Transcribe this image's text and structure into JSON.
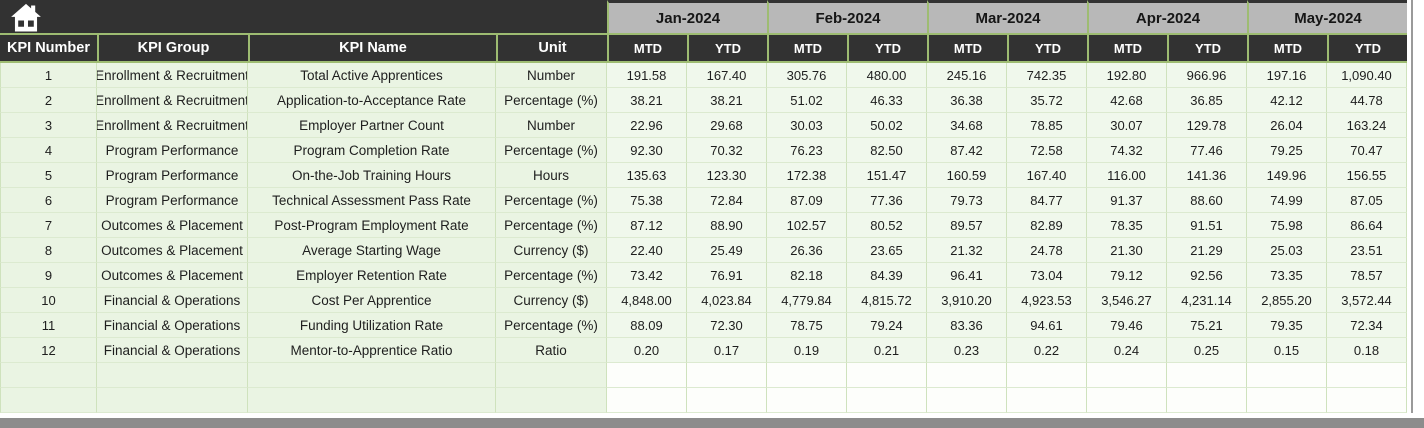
{
  "colors": {
    "header_dark": "#323232",
    "month_gray": "#b8b8b8",
    "border_green": "#9ebc72",
    "row_light_green": "#eaf4e3",
    "data_light_green": "#f0f8ec",
    "edge_gray": "#8c8c8c"
  },
  "table": {
    "corner_icon": "home-icon",
    "months": [
      "Jan-2024",
      "Feb-2024",
      "Mar-2024",
      "Apr-2024",
      "May-2024"
    ],
    "sub_headers": [
      "MTD",
      "YTD"
    ],
    "left_headers": [
      "KPI Number",
      "KPI Group",
      "KPI Name",
      "Unit"
    ],
    "rows": [
      {
        "number": "1",
        "group": "Enrollment & Recruitment",
        "name": "Total Active Apprentices",
        "unit": "Number",
        "values": [
          "191.58",
          "167.40",
          "305.76",
          "480.00",
          "245.16",
          "742.35",
          "192.80",
          "966.96",
          "197.16",
          "1,090.40"
        ]
      },
      {
        "number": "2",
        "group": "Enrollment & Recruitment",
        "name": "Application-to-Acceptance Rate",
        "unit": "Percentage (%)",
        "values": [
          "38.21",
          "38.21",
          "51.02",
          "46.33",
          "36.38",
          "35.72",
          "42.68",
          "36.85",
          "42.12",
          "44.78"
        ]
      },
      {
        "number": "3",
        "group": "Enrollment & Recruitment",
        "name": "Employer Partner Count",
        "unit": "Number",
        "values": [
          "22.96",
          "29.68",
          "30.03",
          "50.02",
          "34.68",
          "78.85",
          "30.07",
          "129.78",
          "26.04",
          "163.24"
        ]
      },
      {
        "number": "4",
        "group": "Program Performance",
        "name": "Program Completion Rate",
        "unit": "Percentage (%)",
        "values": [
          "92.30",
          "70.32",
          "76.23",
          "82.50",
          "87.42",
          "72.58",
          "74.32",
          "77.46",
          "79.25",
          "70.47"
        ]
      },
      {
        "number": "5",
        "group": "Program Performance",
        "name": "On-the-Job Training Hours",
        "unit": "Hours",
        "values": [
          "135.63",
          "123.30",
          "172.38",
          "151.47",
          "160.59",
          "167.40",
          "116.00",
          "141.36",
          "149.96",
          "156.55"
        ]
      },
      {
        "number": "6",
        "group": "Program Performance",
        "name": "Technical Assessment Pass Rate",
        "unit": "Percentage (%)",
        "values": [
          "75.38",
          "72.84",
          "87.09",
          "77.36",
          "79.73",
          "84.77",
          "91.37",
          "88.60",
          "74.99",
          "87.05"
        ]
      },
      {
        "number": "7",
        "group": "Outcomes & Placement",
        "name": "Post-Program Employment Rate",
        "unit": "Percentage (%)",
        "values": [
          "87.12",
          "88.90",
          "102.57",
          "80.52",
          "89.57",
          "82.89",
          "78.35",
          "91.51",
          "75.98",
          "86.64"
        ]
      },
      {
        "number": "8",
        "group": "Outcomes & Placement",
        "name": "Average Starting Wage",
        "unit": "Currency ($)",
        "values": [
          "22.40",
          "25.49",
          "26.36",
          "23.65",
          "21.32",
          "24.78",
          "21.30",
          "21.29",
          "25.03",
          "23.51"
        ]
      },
      {
        "number": "9",
        "group": "Outcomes & Placement",
        "name": "Employer Retention Rate",
        "unit": "Percentage (%)",
        "values": [
          "73.42",
          "76.91",
          "82.18",
          "84.39",
          "96.41",
          "73.04",
          "79.12",
          "92.56",
          "73.35",
          "78.57"
        ]
      },
      {
        "number": "10",
        "group": "Financial & Operations",
        "name": "Cost Per Apprentice",
        "unit": "Currency ($)",
        "values": [
          "4,848.00",
          "4,023.84",
          "4,779.84",
          "4,815.72",
          "3,910.20",
          "4,923.53",
          "3,546.27",
          "4,231.14",
          "2,855.20",
          "3,572.44"
        ]
      },
      {
        "number": "11",
        "group": "Financial & Operations",
        "name": "Funding Utilization Rate",
        "unit": "Percentage (%)",
        "values": [
          "88.09",
          "72.30",
          "78.75",
          "79.24",
          "83.36",
          "94.61",
          "79.46",
          "75.21",
          "79.35",
          "72.34"
        ]
      },
      {
        "number": "12",
        "group": "Financial & Operations",
        "name": "Mentor-to-Apprentice Ratio",
        "unit": "Ratio",
        "values": [
          "0.20",
          "0.17",
          "0.19",
          "0.21",
          "0.23",
          "0.22",
          "0.24",
          "0.25",
          "0.15",
          "0.18"
        ]
      }
    ],
    "empty_row_count": 2
  }
}
